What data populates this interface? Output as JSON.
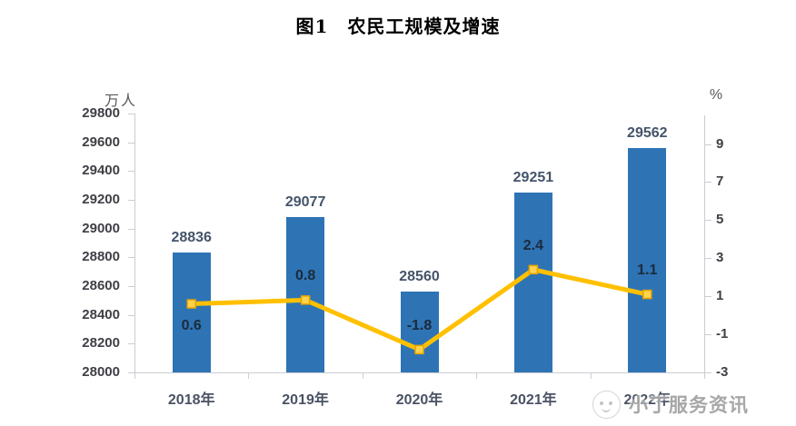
{
  "title": "图1　农民工规模及增速",
  "watermark": {
    "text": "小丁服务资讯",
    "logo": "mascot-face-icon"
  },
  "chart_data": {
    "type": "bar",
    "subtype": "bar+line-combo",
    "title": "图1　农民工规模及增速",
    "categories": [
      "2018年",
      "2019年",
      "2020年",
      "2021年",
      "2022年"
    ],
    "series": [
      {
        "name": "农民工规模",
        "type": "bar",
        "axis": "left",
        "unit": "万人",
        "color": "#2e74b5",
        "values": [
          28836,
          29077,
          28560,
          29251,
          29562
        ],
        "labels": [
          "28836",
          "29077",
          "28560",
          "29251",
          "29562"
        ]
      },
      {
        "name": "增速",
        "type": "line",
        "axis": "right",
        "unit": "%",
        "color": "#FFC000",
        "values": [
          0.6,
          0.8,
          -1.8,
          2.4,
          1.1
        ],
        "labels": [
          "0.6",
          "0.8",
          "-1.8",
          "2.4",
          "1.1"
        ],
        "label_positions": [
          "below",
          "above",
          "above",
          "above",
          "above"
        ]
      }
    ],
    "left_axis": {
      "unit": "万人",
      "min": 28000,
      "max": 29800,
      "ticks": [
        29800,
        29600,
        29400,
        29200,
        29000,
        28800,
        28600,
        28400,
        28200,
        28000
      ]
    },
    "right_axis": {
      "unit": "%",
      "min": -3,
      "max": 10.6,
      "ticks": [
        9,
        7,
        5,
        3,
        1,
        -1,
        -3
      ]
    },
    "grid": false,
    "legend_position": "none"
  }
}
